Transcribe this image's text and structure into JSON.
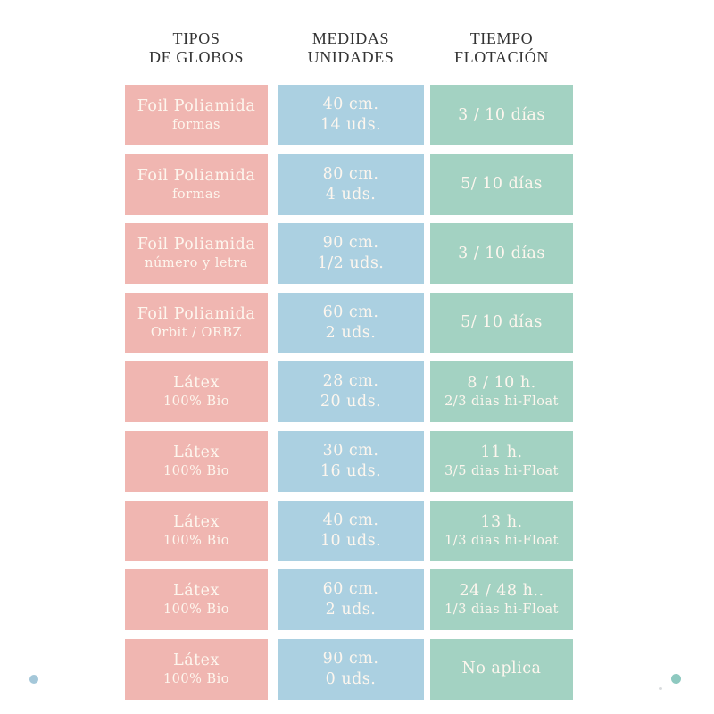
{
  "colors": {
    "pink": "#f0b6b1",
    "blue": "#abd0e1",
    "green": "#a3d2c2",
    "cell_text": "#fdf6ee",
    "header_text": "#333333",
    "dot_blue": "#a4c7d9",
    "dot_teal": "#8ec9c0",
    "speck_gray": "#d0d3d6"
  },
  "table": {
    "headers": [
      {
        "line1": "TIPOS",
        "line2": "DE GLOBOS"
      },
      {
        "line1": "MEDIDAS",
        "line2": "UNIDADES"
      },
      {
        "line1": "TIEMPO",
        "line2": "FLOTACIÓN"
      }
    ],
    "rows": [
      {
        "type1": "Foil Poliamida",
        "type2": "formas",
        "size1": "40 cm.",
        "size2": "14 uds.",
        "float1": "3 / 10 días",
        "float2": ""
      },
      {
        "type1": "Foil Poliamida",
        "type2": "formas",
        "size1": "80 cm.",
        "size2": "4 uds.",
        "float1": "5/ 10 días",
        "float2": ""
      },
      {
        "type1": "Foil Poliamida",
        "type2": "número y letra",
        "size1": "90 cm.",
        "size2": "1/2 uds.",
        "float1": "3 / 10 días",
        "float2": ""
      },
      {
        "type1": "Foil Poliamida",
        "type2": "Orbit / ORBZ",
        "size1": "60 cm.",
        "size2": "2 uds.",
        "float1": "5/ 10 días",
        "float2": ""
      },
      {
        "type1": "Látex",
        "type2": "100% Bio",
        "size1": "28 cm.",
        "size2": "20 uds.",
        "float1": "8 / 10 h.",
        "float2": "2/3 dias hi-Float"
      },
      {
        "type1": "Látex",
        "type2": "100% Bio",
        "size1": "30 cm.",
        "size2": "16 uds.",
        "float1": "11 h.",
        "float2": "3/5 dias hi-Float"
      },
      {
        "type1": "Látex",
        "type2": "100% Bio",
        "size1": "40 cm.",
        "size2": "10 uds.",
        "float1": "13 h.",
        "float2": "1/3 dias hi-Float"
      },
      {
        "type1": "Látex",
        "type2": "100% Bio",
        "size1": "60 cm.",
        "size2": "2 uds.",
        "float1": "24 / 48 h..",
        "float2": "1/3 dias hi-Float"
      },
      {
        "type1": "Látex",
        "type2": "100% Bio",
        "size1": "90 cm.",
        "size2": "0 uds.",
        "float1": "No aplica",
        "float2": ""
      }
    ]
  },
  "chart_data": {
    "type": "table",
    "columns": [
      "TIPOS DE GLOBOS",
      "MEDIDAS UNIDADES",
      "TIEMPO FLOTACIÓN"
    ],
    "rows": [
      [
        "Foil Poliamida — formas",
        "40 cm. — 14 uds.",
        "3 / 10 días"
      ],
      [
        "Foil Poliamida — formas",
        "80 cm. — 4 uds.",
        "5/ 10 días"
      ],
      [
        "Foil Poliamida — número y letra",
        "90 cm. — 1/2 uds.",
        "3 / 10 días"
      ],
      [
        "Foil Poliamida — Orbit / ORBZ",
        "60 cm. — 2 uds.",
        "5/ 10 días"
      ],
      [
        "Látex — 100% Bio",
        "28 cm. — 20 uds.",
        "8 / 10 h. — 2/3 dias hi-Float"
      ],
      [
        "Látex — 100% Bio",
        "30 cm. — 16 uds.",
        "11 h. — 3/5 dias hi-Float"
      ],
      [
        "Látex — 100% Bio",
        "40 cm. — 10 uds.",
        "13 h. — 1/3 dias hi-Float"
      ],
      [
        "Látex — 100% Bio",
        "60 cm. — 2 uds.",
        "24 / 48 h.. — 1/3 dias hi-Float"
      ],
      [
        "Látex — 100% Bio",
        "90 cm. — 0 uds.",
        "No aplica"
      ]
    ],
    "legend_position": "none",
    "grid": false
  }
}
